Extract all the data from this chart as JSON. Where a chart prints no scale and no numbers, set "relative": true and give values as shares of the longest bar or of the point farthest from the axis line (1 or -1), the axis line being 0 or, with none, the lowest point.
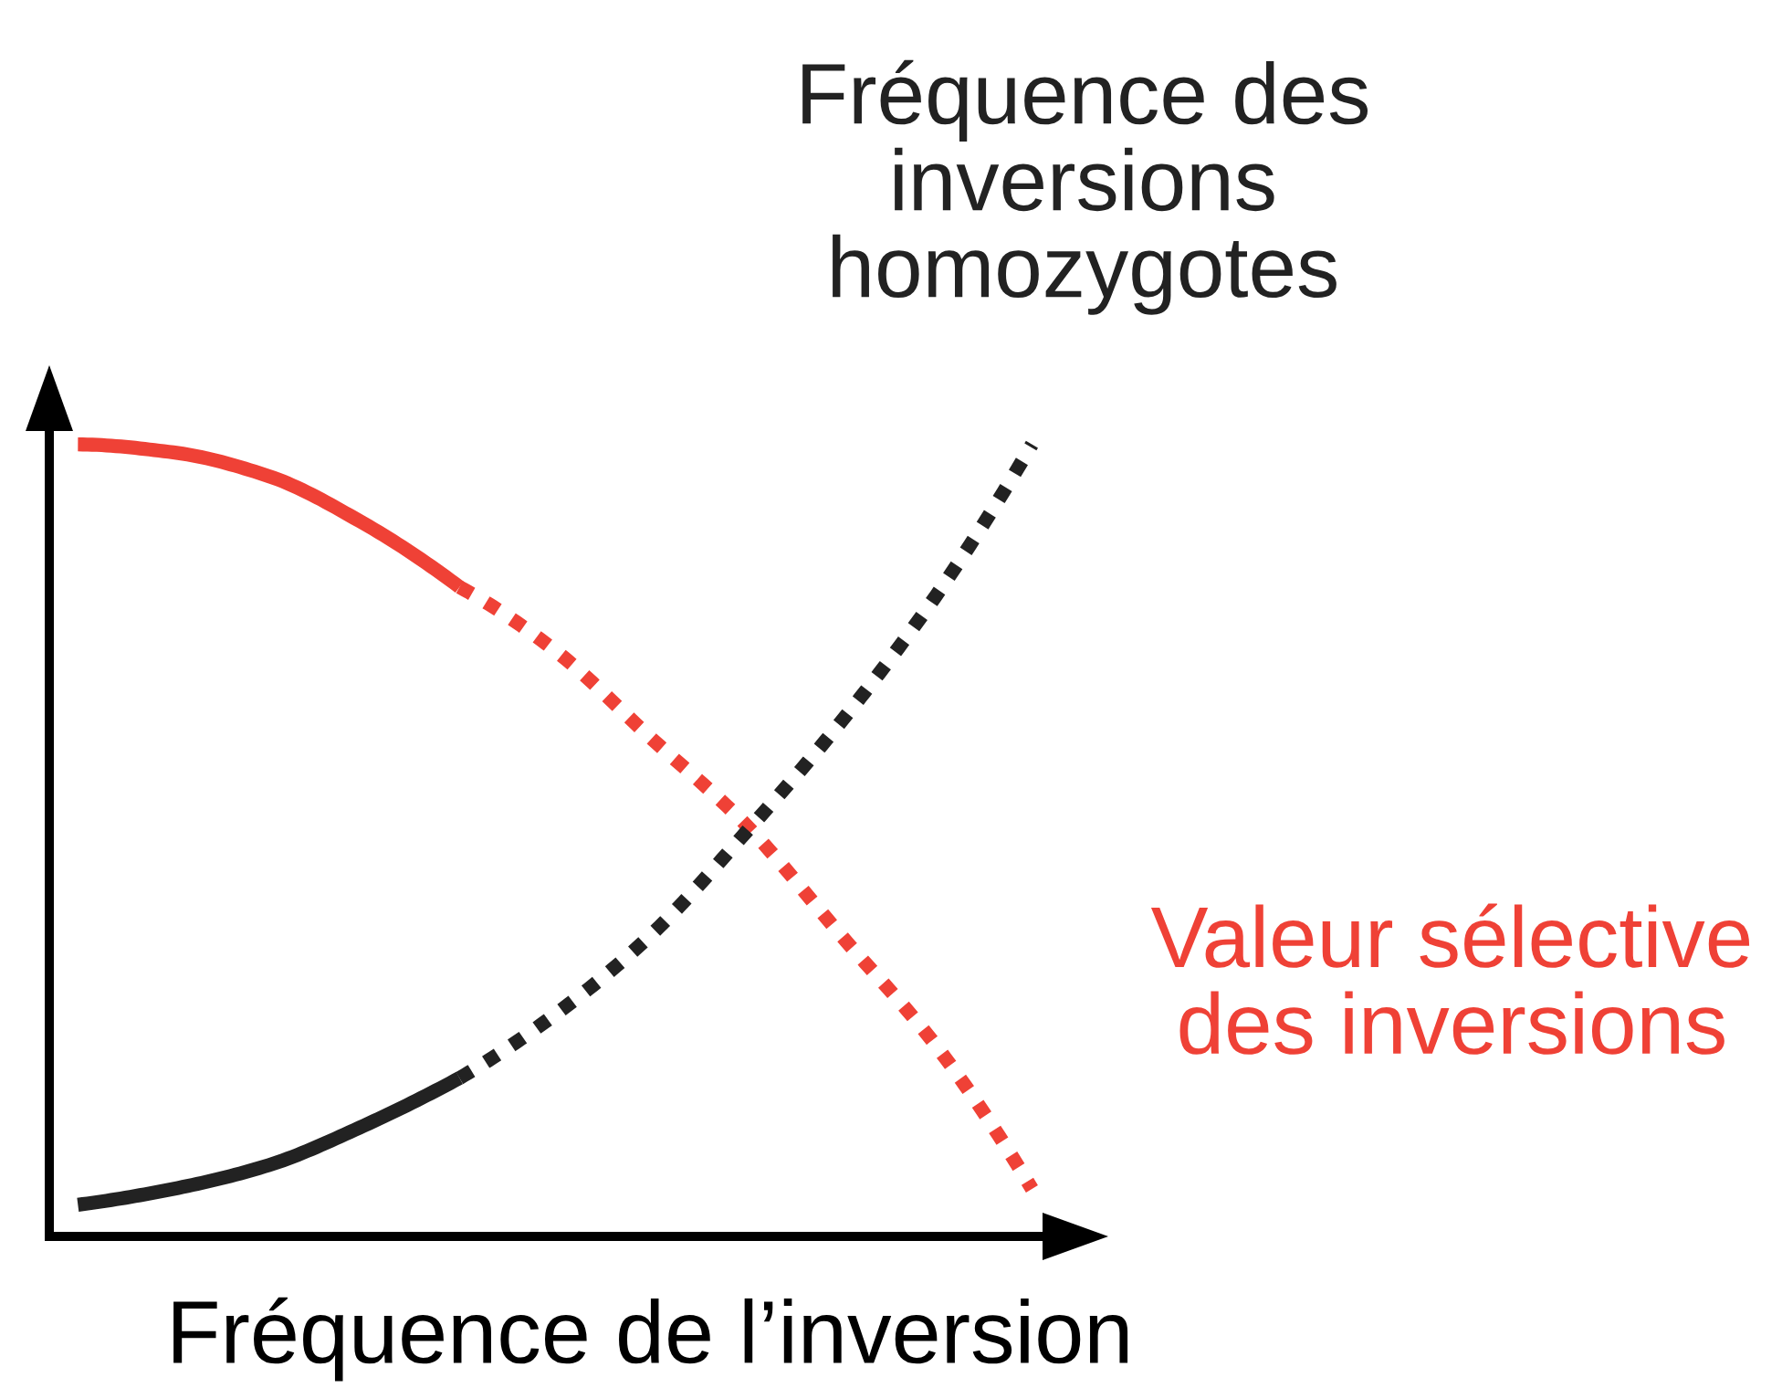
{
  "chart_data": {
    "type": "line",
    "relative": true,
    "xlabel": "Fréquence de l’inversion",
    "legend": false,
    "categories": [
      null,
      null,
      null,
      null,
      null,
      null,
      null,
      null,
      null,
      null,
      null
    ],
    "series": [
      {
        "color": "#ef4136",
        "line_style": "solid",
        "values": [
          1.0,
          0.99,
          0.96,
          0.9,
          0.82,
          null,
          null,
          null,
          null,
          null,
          null
        ]
      },
      {
        "name": "Valeur sélective\ndes inversions",
        "color": "#ef4136",
        "line_style": "dotted",
        "values": [
          null,
          null,
          null,
          null,
          0.82,
          0.74,
          0.63,
          0.52,
          0.38,
          0.24,
          0.06
        ]
      },
      {
        "color": "#222222",
        "line_style": "solid",
        "values": [
          0.04,
          0.06,
          0.09,
          0.14,
          0.2,
          null,
          null,
          null,
          null,
          null,
          null
        ]
      },
      {
        "name": "Fréquence des\ninversions\nhomozygotes",
        "color": "#222222",
        "line_style": "dotted",
        "values": [
          null,
          null,
          null,
          null,
          0.2,
          0.28,
          0.38,
          0.51,
          0.65,
          0.81,
          1.0
        ]
      }
    ]
  }
}
